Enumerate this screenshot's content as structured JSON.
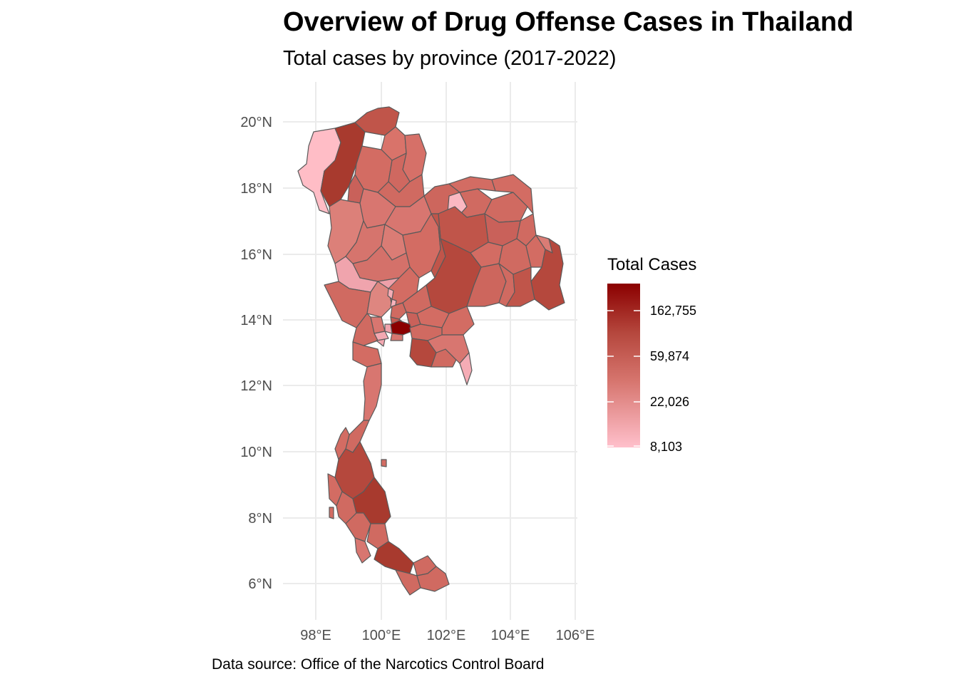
{
  "title": "Overview of Drug Offense Cases in Thailand",
  "subtitle": "Total cases by province (2017-2022)",
  "caption": "Data source: Office of the Narcotics Control Board",
  "map": {
    "type": "choropleth",
    "region": "Thailand provinces",
    "grid": true,
    "axes": {
      "x_ticks": [
        "98°E",
        "100°E",
        "102°E",
        "104°E",
        "106°E"
      ],
      "y_ticks": [
        "20°N",
        "18°N",
        "16°N",
        "14°N",
        "12°N",
        "10°N",
        "8°N",
        "6°N"
      ]
    },
    "legend": {
      "title": "Total Cases",
      "placement": "right",
      "scale": "log",
      "labels": [
        "162,755",
        "59,874",
        "22,026",
        "8,103"
      ],
      "color_low": "#ffc0cb",
      "color_high": "#8b0000"
    },
    "border_color": "#5a5a5a"
  }
}
